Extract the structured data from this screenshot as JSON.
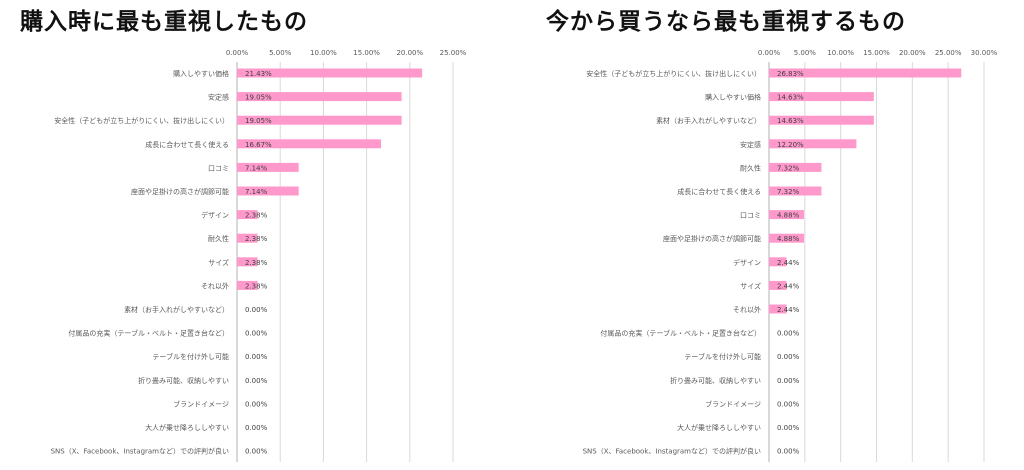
{
  "chart_data": [
    {
      "type": "bar",
      "orientation": "horizontal",
      "title": "購入時に最も重視したもの",
      "xlim": [
        0,
        25
      ],
      "ticks": [
        "0.00%",
        "5.00%",
        "10.00%",
        "15.00%",
        "20.00%",
        "25.00%"
      ],
      "color": "#ff99cc",
      "grid": true,
      "categories": [
        "購入しやすい価格",
        "安定感",
        "安全性（子どもが立ち上がりにくい、抜け出しにくい）",
        "成長に合わせて長く使える",
        "口コミ",
        "座面や足掛けの高さが調節可能",
        "デザイン",
        "耐久性",
        "サイズ",
        "それ以外",
        "素材（お手入れがしやすいなど）",
        "付属品の充実（テーブル・ベルト・足置き台など）",
        "テーブルを付け外し可能",
        "折り畳み可能、収納しやすい",
        "ブランドイメージ",
        "大人が乗せ降ろししやすい",
        "SNS（X、Facebook、Instagramなど）での評判が良い"
      ],
      "values": [
        21.43,
        19.05,
        19.05,
        16.67,
        7.14,
        7.14,
        2.38,
        2.38,
        2.38,
        2.38,
        0,
        0,
        0,
        0,
        0,
        0,
        0
      ],
      "labels": [
        "21.43%",
        "19.05%",
        "19.05%",
        "16.67%",
        "7.14%",
        "7.14%",
        "2.38%",
        "2.38%",
        "2.38%",
        "2.38%",
        "0.00%",
        "0.00%",
        "0.00%",
        "0.00%",
        "0.00%",
        "0.00%",
        "0.00%"
      ]
    },
    {
      "type": "bar",
      "orientation": "horizontal",
      "title": "今から買うなら最も重視するもの",
      "xlim": [
        0,
        30
      ],
      "ticks": [
        "0.00%",
        "5.00%",
        "10.00%",
        "15.00%",
        "20.00%",
        "25.00%",
        "30.00%"
      ],
      "color": "#ff99cc",
      "grid": true,
      "categories": [
        "安全性（子どもが立ち上がりにくい、抜け出しにくい）",
        "購入しやすい価格",
        "素材（お手入れがしやすいなど）",
        "安定感",
        "耐久性",
        "成長に合わせて長く使える",
        "口コミ",
        "座面や足掛けの高さが調節可能",
        "デザイン",
        "サイズ",
        "それ以外",
        "付属品の充実（テーブル・ベルト・足置き台など）",
        "テーブルを付け外し可能",
        "折り畳み可能、収納しやすい",
        "ブランドイメージ",
        "大人が乗せ降ろししやすい",
        "SNS（X、Facebook、Instagramなど）での評判が良い"
      ],
      "values": [
        26.83,
        14.63,
        14.63,
        12.2,
        7.32,
        7.32,
        4.88,
        4.88,
        2.44,
        2.44,
        2.44,
        0,
        0,
        0,
        0,
        0,
        0
      ],
      "labels": [
        "26.83%",
        "14.63%",
        "14.63%",
        "12.20%",
        "7.32%",
        "7.32%",
        "4.88%",
        "4.88%",
        "2.44%",
        "2.44%",
        "2.44%",
        "0.00%",
        "0.00%",
        "0.00%",
        "0.00%",
        "0.00%",
        "0.00%"
      ]
    }
  ]
}
